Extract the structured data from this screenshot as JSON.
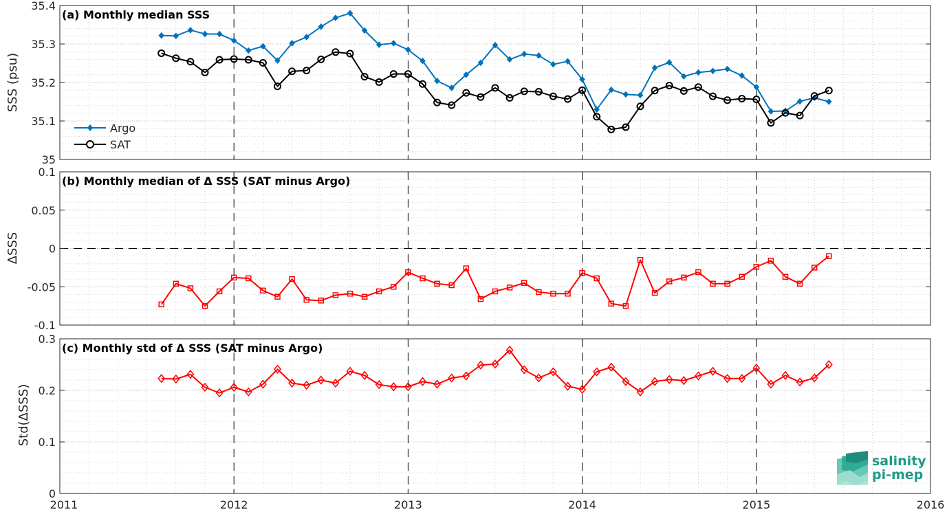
{
  "colors": {
    "argo": "#0072BD",
    "sat": "#000000",
    "delta": "#FF0000",
    "grid": "#c8c8c8",
    "axis": "#262626",
    "logo": "#1f9a8a"
  },
  "logo": {
    "line1": "salinity",
    "line2": "pi-mep"
  },
  "x_axis": {
    "range": [
      2011,
      2016
    ],
    "ticks": [
      2011,
      2012,
      2013,
      2014,
      2015,
      2016
    ],
    "tick_labels": [
      "2011",
      "2012",
      "2013",
      "2014",
      "2015",
      "2016"
    ],
    "dashed_year_lines": [
      2012,
      2013,
      2014,
      2015
    ]
  },
  "chart_data": [
    {
      "type": "line",
      "title": "(a) Monthly median SSS",
      "ylabel": "SSS (psu)",
      "ylim": [
        35,
        35.4
      ],
      "yticks": [
        35,
        35.1,
        35.2,
        35.3,
        35.4
      ],
      "ytick_labels": [
        "35",
        "35.1",
        "35.2",
        "35.3",
        "35.4"
      ],
      "grid": true,
      "legend_position": "bottom-left",
      "x_start": "2011-08",
      "x_end": "2015-06",
      "x": [
        "2011-08",
        "2011-09",
        "2011-10",
        "2011-11",
        "2011-12",
        "2012-01",
        "2012-02",
        "2012-03",
        "2012-04",
        "2012-05",
        "2012-06",
        "2012-07",
        "2012-08",
        "2012-09",
        "2012-10",
        "2012-11",
        "2012-12",
        "2013-01",
        "2013-02",
        "2013-03",
        "2013-04",
        "2013-05",
        "2013-06",
        "2013-07",
        "2013-08",
        "2013-09",
        "2013-10",
        "2013-11",
        "2013-12",
        "2014-01",
        "2014-02",
        "2014-03",
        "2014-04",
        "2014-05",
        "2014-06",
        "2014-07",
        "2014-08",
        "2014-09",
        "2014-10",
        "2014-11",
        "2014-12",
        "2015-01",
        "2015-02",
        "2015-03",
        "2015-04",
        "2015-05",
        "2015-06"
      ],
      "series": [
        {
          "name": "Argo",
          "marker": "filled-diamond",
          "values": [
            35.322,
            35.321,
            35.336,
            35.326,
            35.326,
            35.309,
            35.283,
            35.294,
            35.257,
            35.302,
            35.318,
            35.345,
            35.368,
            35.38,
            35.335,
            35.298,
            35.302,
            35.285,
            35.256,
            35.204,
            35.186,
            35.22,
            35.251,
            35.297,
            35.26,
            35.274,
            35.27,
            35.247,
            35.255,
            35.208,
            35.13,
            35.181,
            35.169,
            35.167,
            35.238,
            35.252,
            35.216,
            35.226,
            35.23,
            35.235,
            35.218,
            35.188,
            35.125,
            35.126,
            35.151,
            35.16,
            35.15
          ]
        },
        {
          "name": "SAT",
          "marker": "open-circle",
          "values": [
            35.276,
            35.263,
            35.254,
            35.226,
            35.259,
            35.261,
            35.259,
            35.251,
            35.19,
            35.229,
            35.231,
            35.26,
            35.279,
            35.275,
            35.215,
            35.201,
            35.222,
            35.222,
            35.196,
            35.148,
            35.141,
            35.173,
            35.162,
            35.186,
            35.16,
            35.177,
            35.176,
            35.164,
            35.157,
            35.18,
            35.111,
            35.078,
            35.084,
            35.138,
            35.179,
            35.192,
            35.178,
            35.188,
            35.164,
            35.154,
            35.158,
            35.156,
            35.095,
            35.121,
            35.114,
            35.165,
            35.179
          ]
        }
      ]
    },
    {
      "type": "line",
      "title": "(b) Monthly median of Δ SSS (SAT minus Argo)",
      "ylabel": "ΔSSS",
      "ylim": [
        -0.1,
        0.1
      ],
      "yticks": [
        -0.1,
        -0.05,
        0,
        0.05,
        0.1
      ],
      "ytick_labels": [
        "-0.1",
        "-0.05",
        "0",
        "0.05",
        "0.1"
      ],
      "zero_line": true,
      "grid": true,
      "series": [
        {
          "marker": "open-square",
          "values": [
            -0.073,
            -0.046,
            -0.052,
            -0.075,
            -0.056,
            -0.038,
            -0.039,
            -0.055,
            -0.063,
            -0.04,
            -0.067,
            -0.068,
            -0.061,
            -0.059,
            -0.063,
            -0.056,
            -0.05,
            -0.031,
            -0.039,
            -0.046,
            -0.048,
            -0.026,
            -0.066,
            -0.056,
            -0.051,
            -0.045,
            -0.057,
            -0.059,
            -0.059,
            -0.032,
            -0.039,
            -0.072,
            -0.075,
            -0.015,
            -0.058,
            -0.043,
            -0.038,
            -0.031,
            -0.046,
            -0.046,
            -0.037,
            -0.024,
            -0.016,
            -0.037,
            -0.046,
            -0.025,
            -0.01
          ]
        }
      ]
    },
    {
      "type": "line",
      "title": "(c) Monthly std of Δ SSS (SAT minus Argo)",
      "ylabel": "Std(ΔSSS)",
      "ylim": [
        0,
        0.3
      ],
      "yticks": [
        0,
        0.1,
        0.2,
        0.3
      ],
      "ytick_labels": [
        "0",
        "0.1",
        "0.2",
        "0.3"
      ],
      "grid": true,
      "series": [
        {
          "marker": "open-diamond",
          "values": [
            0.223,
            0.222,
            0.231,
            0.206,
            0.195,
            0.206,
            0.197,
            0.212,
            0.241,
            0.214,
            0.21,
            0.22,
            0.214,
            0.237,
            0.229,
            0.211,
            0.207,
            0.207,
            0.217,
            0.212,
            0.224,
            0.228,
            0.249,
            0.251,
            0.278,
            0.24,
            0.224,
            0.236,
            0.208,
            0.202,
            0.236,
            0.245,
            0.217,
            0.197,
            0.217,
            0.221,
            0.219,
            0.228,
            0.237,
            0.223,
            0.223,
            0.243,
            0.212,
            0.229,
            0.216,
            0.224,
            0.25
          ]
        }
      ]
    }
  ]
}
